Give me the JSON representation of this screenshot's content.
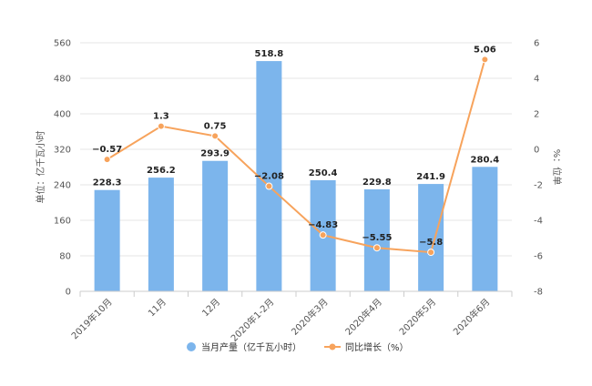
{
  "chart_data": {
    "type": "bar",
    "categories": [
      "2019年10月",
      "11月",
      "12月",
      "2020年1-2月",
      "2020年3月",
      "2020年4月",
      "2020年5月",
      "2020年6月"
    ],
    "series": [
      {
        "name": "当月产量（亿千瓦小时）",
        "type": "bar",
        "axis": "left",
        "values": [
          228.3,
          256.2,
          293.9,
          518.8,
          250.4,
          229.8,
          241.9,
          280.4
        ],
        "labels": [
          "228.3",
          "256.2",
          "293.9",
          "518.8",
          "250.4",
          "229.8",
          "241.9",
          "280.4"
        ],
        "color": "#7cb5ec"
      },
      {
        "name": "同比增长（%）",
        "type": "line",
        "axis": "right",
        "values": [
          -0.57,
          1.3,
          0.75,
          -2.08,
          -4.83,
          -5.55,
          -5.8,
          5.06
        ],
        "labels": [
          "−0.57",
          "1.3",
          "0.75",
          "−2.08",
          "−4.83",
          "−5.55",
          "−5.8",
          "5.06"
        ],
        "color": "#f7a35c"
      }
    ],
    "yleft": {
      "label": "单位：亿千瓦小时",
      "lim": [
        0,
        560
      ],
      "ticks": [
        0,
        80,
        160,
        240,
        320,
        400,
        480,
        560
      ]
    },
    "yright": {
      "label": "%：位单",
      "lim": [
        -8,
        6
      ],
      "ticks": [
        -8,
        -6,
        -4,
        -2,
        0,
        2,
        4,
        6
      ]
    },
    "grid": true,
    "legend": "bottom-center"
  }
}
